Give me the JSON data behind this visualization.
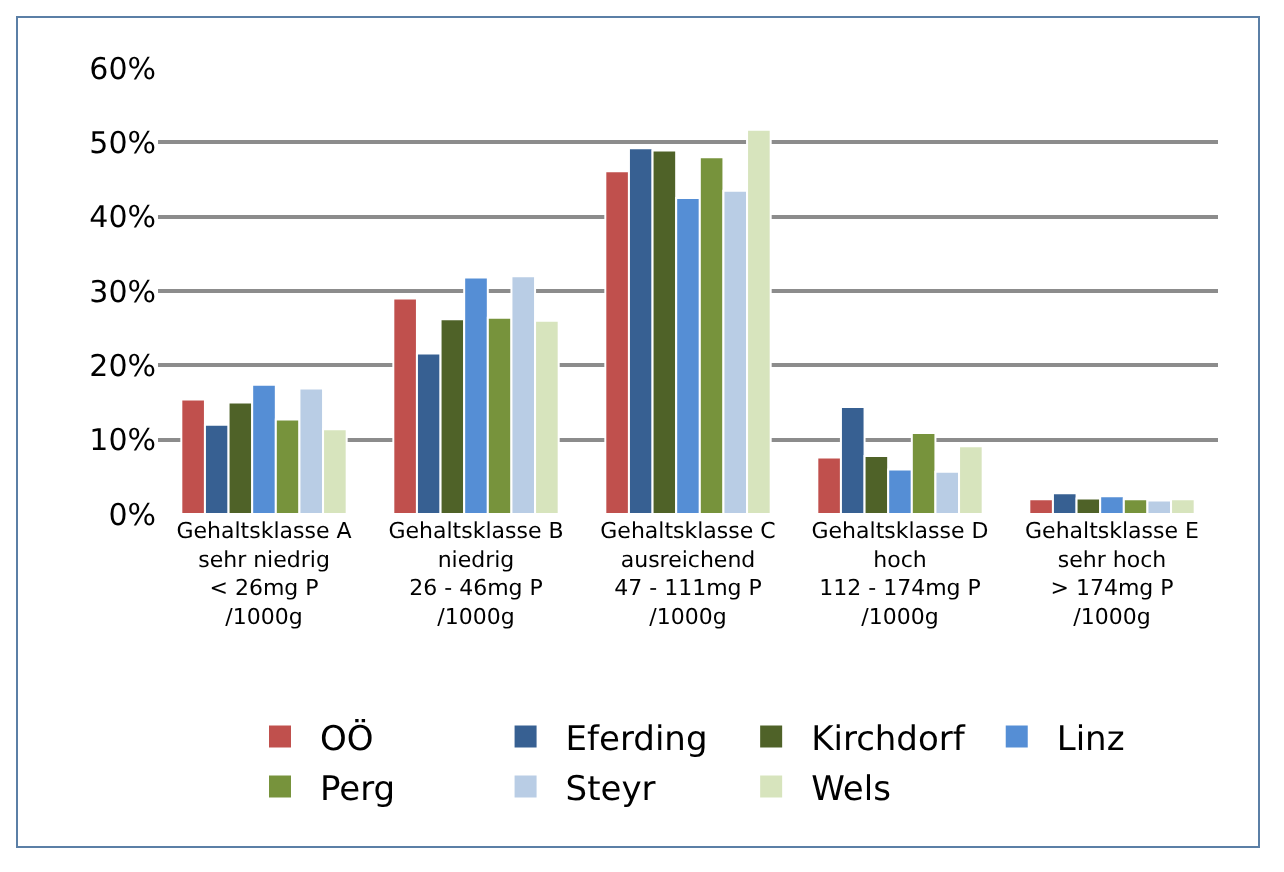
{
  "chart_data": {
    "type": "bar",
    "categories": [
      "Gehaltsklasse A\nsehr niedrig\n< 26mg P\n/1000g",
      "Gehaltsklasse B\nniedrig\n26 - 46mg P\n/1000g",
      "Gehaltsklasse C\nausreichend\n47 - 111mg P\n/1000g",
      "Gehaltsklasse D\nhoch\n112 - 174mg P\n/1000g",
      "Gehaltsklasse E\nsehr hoch\n> 174mg P\n/1000g"
    ],
    "series": [
      {
        "name": "OÖ",
        "color": "#c0504d",
        "values": [
          15.4,
          29,
          46.1,
          7.6,
          2
        ]
      },
      {
        "name": "Eferding",
        "color": "#376092",
        "values": [
          12,
          21.6,
          49.2,
          14.4,
          2.8
        ]
      },
      {
        "name": "Kirchdorf",
        "color": "#4f6228",
        "values": [
          15,
          26.2,
          48.9,
          7.8,
          2.1
        ]
      },
      {
        "name": "Linz",
        "color": "#558ed5",
        "values": [
          17.4,
          31.8,
          42.5,
          6,
          2.4
        ]
      },
      {
        "name": "Perg",
        "color": "#77933c",
        "values": [
          12.7,
          26.4,
          48,
          10.9,
          2
        ]
      },
      {
        "name": "Steyr",
        "color": "#b9cde5",
        "values": [
          16.9,
          32,
          43.5,
          5.7,
          1.8
        ]
      },
      {
        "name": "Wels",
        "color": "#d7e4bd",
        "values": [
          11.4,
          26,
          51.7,
          9.1,
          2
        ]
      }
    ],
    "ylim": [
      0,
      60
    ],
    "yticks": [
      {
        "value": 0,
        "label": "0%"
      },
      {
        "value": 10,
        "label": "10%"
      },
      {
        "value": 20,
        "label": "20%"
      },
      {
        "value": 30,
        "label": "30%"
      },
      {
        "value": 40,
        "label": "40%"
      },
      {
        "value": 50,
        "label": "50%"
      },
      {
        "value": 60,
        "label": "60%"
      }
    ],
    "grid": "y",
    "legend": "bottom"
  }
}
